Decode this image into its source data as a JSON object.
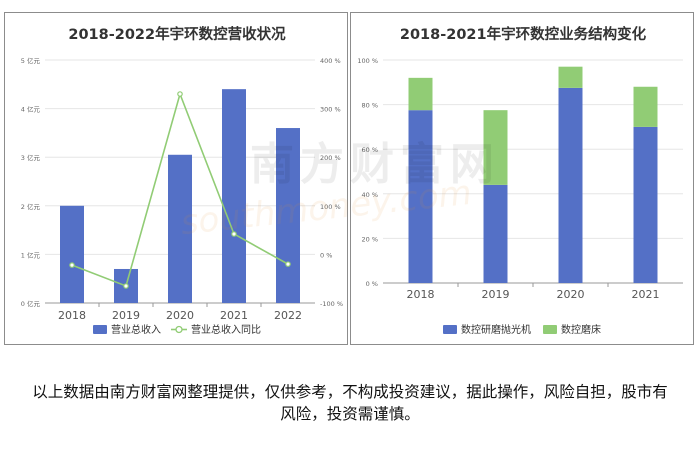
{
  "watermark": {
    "text": "南方财富网",
    "url_text": "southmoney.com"
  },
  "disclaimer": {
    "text": "以上数据由南方财富网整理提供，仅供参考，不构成投资建议，据此操作，风险自担，股市有风险，投资需谨慎。"
  },
  "colors": {
    "blue": "#5470c6",
    "green": "#91cc75",
    "grid": "#e6e6e6",
    "axis": "#666666"
  },
  "chart_data": [
    {
      "type": "bar",
      "title": "2018-2022年宇环数控营收状况",
      "categories": [
        "2018",
        "2019",
        "2020",
        "2021",
        "2022"
      ],
      "y_left": {
        "ticks": [
          "0 亿元",
          "1 亿元",
          "2 亿元",
          "3 亿元",
          "4 亿元",
          "5 亿元"
        ],
        "range": [
          0,
          5
        ]
      },
      "y_right": {
        "ticks": [
          "-100 %",
          "0 %",
          "100 %",
          "200 %",
          "300 %",
          "400 %"
        ],
        "range": [
          -100,
          400
        ]
      },
      "series": [
        {
          "name": "营业总收入",
          "type": "bar",
          "axis": "left",
          "color": "#5470c6",
          "values": [
            2.0,
            0.7,
            3.05,
            4.4,
            3.6
          ]
        },
        {
          "name": "营业总收入同比",
          "type": "line",
          "axis": "right",
          "color": "#91cc75",
          "values": [
            -22,
            -65,
            330,
            42,
            -20
          ]
        }
      ],
      "legend": "bottom"
    },
    {
      "type": "bar",
      "stacked": true,
      "title": "2018-2021年宇环数控业务结构变化",
      "categories": [
        "2018",
        "2019",
        "2020",
        "2021"
      ],
      "y": {
        "ticks": [
          "0 %",
          "20 %",
          "40 %",
          "60 %",
          "80 %",
          "100 %"
        ],
        "range": [
          0,
          100
        ]
      },
      "series": [
        {
          "name": "数控研磨抛光机",
          "color": "#5470c6",
          "values": [
            77.5,
            44,
            87.5,
            70
          ]
        },
        {
          "name": "数控磨床",
          "color": "#91cc75",
          "values": [
            14.5,
            33.5,
            9.5,
            18
          ]
        }
      ],
      "legend": "bottom"
    }
  ]
}
